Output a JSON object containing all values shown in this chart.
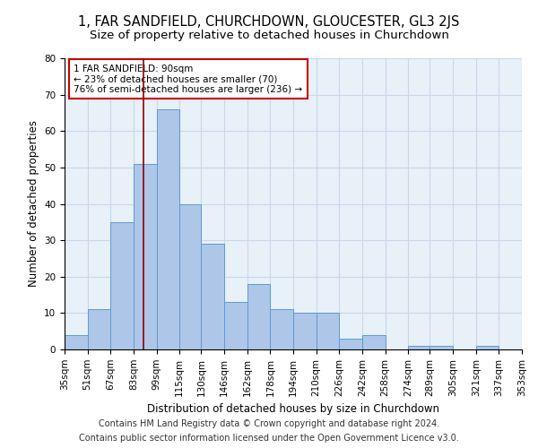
{
  "title": "1, FAR SANDFIELD, CHURCHDOWN, GLOUCESTER, GL3 2JS",
  "subtitle": "Size of property relative to detached houses in Churchdown",
  "xlabel": "Distribution of detached houses by size in Churchdown",
  "ylabel": "Number of detached properties",
  "bar_color": "#aec6e8",
  "bar_edgecolor": "#5b9bd5",
  "grid_color": "#c8d8ea",
  "background_color": "#e8f0f8",
  "vline_value": 90,
  "vline_color": "#8b0000",
  "annotation_line1": "1 FAR SANDFIELD: 90sqm",
  "annotation_line2": "← 23% of detached houses are smaller (70)",
  "annotation_line3": "76% of semi-detached houses are larger (236) →",
  "annotation_box_color": "#ffffff",
  "annotation_box_edgecolor": "#cc0000",
  "bins": [
    35,
    51,
    67,
    83,
    99,
    115,
    130,
    146,
    162,
    178,
    194,
    210,
    226,
    242,
    258,
    274,
    289,
    305,
    321,
    337,
    353
  ],
  "counts": [
    4,
    11,
    35,
    51,
    66,
    40,
    29,
    13,
    18,
    11,
    10,
    10,
    3,
    4,
    0,
    1,
    1,
    0,
    1,
    0
  ],
  "ylim": [
    0,
    80
  ],
  "yticks": [
    0,
    10,
    20,
    30,
    40,
    50,
    60,
    70,
    80
  ],
  "footer_line1": "Contains HM Land Registry data © Crown copyright and database right 2024.",
  "footer_line2": "Contains public sector information licensed under the Open Government Licence v3.0.",
  "title_fontsize": 10.5,
  "subtitle_fontsize": 9.5,
  "axis_label_fontsize": 8.5,
  "tick_fontsize": 7.5,
  "footer_fontsize": 7.0,
  "annotation_fontsize": 7.5
}
